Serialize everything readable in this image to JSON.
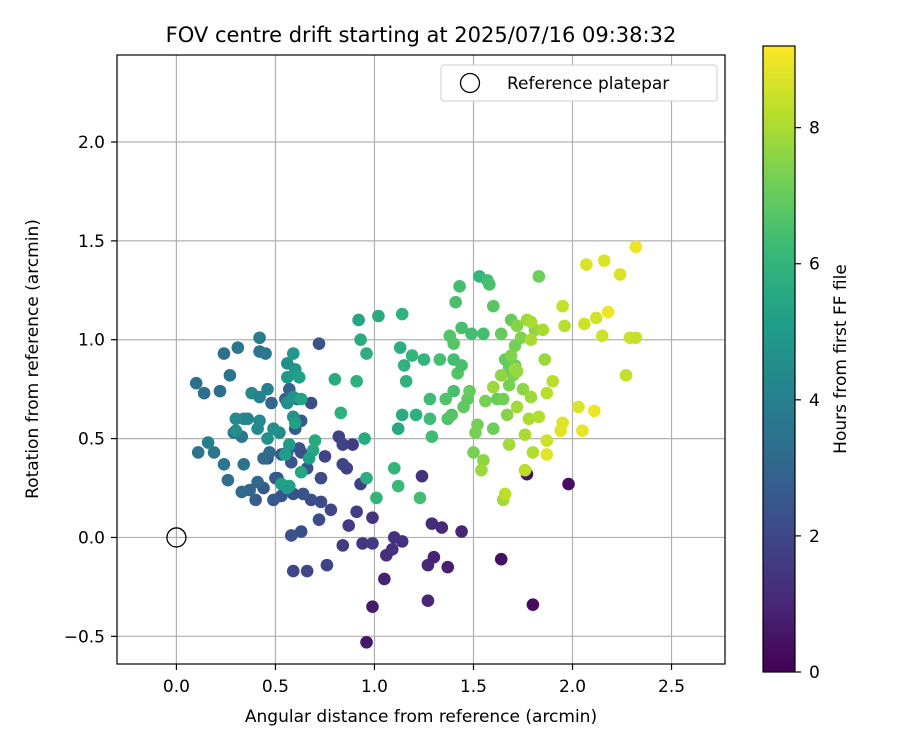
{
  "chart_data": {
    "type": "scatter",
    "title": "FOV centre drift starting at 2025/07/16 09:38:32",
    "xlabel": "Angular distance from reference (arcmin)",
    "ylabel": "Rotation from reference (arcmin)",
    "xlim": [
      -0.3,
      2.77
    ],
    "ylim": [
      -0.64,
      2.44
    ],
    "xticks": [
      0.0,
      0.5,
      1.0,
      1.5,
      2.0,
      2.5
    ],
    "yticks": [
      -0.5,
      0.0,
      0.5,
      1.0,
      1.5,
      2.0
    ],
    "xtick_labels": [
      "0.0",
      "0.5",
      "1.0",
      "1.5",
      "2.0",
      "2.5"
    ],
    "ytick_labels": [
      "−0.5",
      "0.0",
      "0.5",
      "1.0",
      "1.5",
      "2.0"
    ],
    "grid": true,
    "legend": {
      "position": "top-right",
      "entries": [
        "Reference platepar"
      ]
    },
    "reference_point": {
      "name": "Reference platepar",
      "x": 0.0,
      "y": 0.0,
      "marker": "open-circle"
    },
    "colorbar": {
      "label": "Hours from first FF file",
      "colormap": "viridis",
      "range": [
        0,
        9.2
      ],
      "ticks": [
        0,
        2,
        4,
        6,
        8
      ],
      "tick_labels": [
        "0",
        "2",
        "4",
        "6",
        "8"
      ]
    },
    "colormap_stops": [
      "#440154",
      "#482878",
      "#3e4989",
      "#31688e",
      "#26828e",
      "#1f9e89",
      "#35b779",
      "#6ece58",
      "#b5de2b",
      "#fde725"
    ],
    "points": [
      [
        0.96,
        -0.53,
        0.6
      ],
      [
        0.99,
        -0.35,
        0.7
      ],
      [
        1.05,
        -0.21,
        0.9
      ],
      [
        1.27,
        -0.32,
        1.0
      ],
      [
        1.8,
        -0.34,
        0.3
      ],
      [
        1.64,
        -0.11,
        0.4
      ],
      [
        1.98,
        0.27,
        0.4
      ],
      [
        1.77,
        0.32,
        0.5
      ],
      [
        1.37,
        -0.15,
        0.8
      ],
      [
        1.27,
        -0.14,
        1.0
      ],
      [
        1.3,
        -0.1,
        0.9
      ],
      [
        1.06,
        -0.09,
        1.2
      ],
      [
        1.09,
        -0.06,
        1.3
      ],
      [
        1.14,
        -0.02,
        1.3
      ],
      [
        1.1,
        0.0,
        1.3
      ],
      [
        1.29,
        0.07,
        1.1
      ],
      [
        1.34,
        0.05,
        1.1
      ],
      [
        1.44,
        0.03,
        1.0
      ],
      [
        1.24,
        0.31,
        1.3
      ],
      [
        0.99,
        0.1,
        1.4
      ],
      [
        0.94,
        -0.03,
        1.5
      ],
      [
        0.99,
        -0.03,
        1.6
      ],
      [
        0.84,
        -0.04,
        1.6
      ],
      [
        0.87,
        0.06,
        1.6
      ],
      [
        0.91,
        0.13,
        1.7
      ],
      [
        0.93,
        0.27,
        1.8
      ],
      [
        0.76,
        -0.14,
        1.9
      ],
      [
        0.66,
        -0.17,
        2.0
      ],
      [
        0.59,
        -0.17,
        2.0
      ],
      [
        0.72,
        0.09,
        2.1
      ],
      [
        0.73,
        0.18,
        2.1
      ],
      [
        0.78,
        0.14,
        2.0
      ],
      [
        0.63,
        0.03,
        2.2
      ],
      [
        0.58,
        0.01,
        2.3
      ],
      [
        0.68,
        0.19,
        2.2
      ],
      [
        0.73,
        0.3,
        2.1
      ],
      [
        0.64,
        0.22,
        2.4
      ],
      [
        0.59,
        0.22,
        2.3
      ],
      [
        0.53,
        0.21,
        2.4
      ],
      [
        0.51,
        0.3,
        2.5
      ],
      [
        0.46,
        0.4,
        2.6
      ],
      [
        0.5,
        0.3,
        2.6
      ],
      [
        0.44,
        0.25,
        2.6
      ],
      [
        0.4,
        0.19,
        2.7
      ],
      [
        0.49,
        0.19,
        2.6
      ],
      [
        0.75,
        0.41,
        1.9
      ],
      [
        0.82,
        0.51,
        1.8
      ],
      [
        0.84,
        0.47,
        1.9
      ],
      [
        0.86,
        0.35,
        1.8
      ],
      [
        0.84,
        0.37,
        1.9
      ],
      [
        0.89,
        0.47,
        1.7
      ],
      [
        0.72,
        0.98,
        2.4
      ],
      [
        0.68,
        0.68,
        2.2
      ],
      [
        0.62,
        0.45,
        2.4
      ],
      [
        0.63,
        0.43,
        2.3
      ],
      [
        0.66,
        0.35,
        2.3
      ],
      [
        0.58,
        0.38,
        2.5
      ],
      [
        0.56,
        0.43,
        2.6
      ],
      [
        0.53,
        0.42,
        2.7
      ],
      [
        0.6,
        0.55,
        2.6
      ],
      [
        0.63,
        0.59,
        2.6
      ],
      [
        0.61,
        0.7,
        3.0
      ],
      [
        0.57,
        0.75,
        2.9
      ],
      [
        0.55,
        0.7,
        3.1
      ],
      [
        0.48,
        0.68,
        3.0
      ],
      [
        0.47,
        0.43,
        3.2
      ],
      [
        0.44,
        0.4,
        3.2
      ],
      [
        0.41,
        0.28,
        3.1
      ],
      [
        0.37,
        0.24,
        3.0
      ],
      [
        0.33,
        0.23,
        3.2
      ],
      [
        0.26,
        0.29,
        3.3
      ],
      [
        0.29,
        0.53,
        3.5
      ],
      [
        0.33,
        0.51,
        3.6
      ],
      [
        0.34,
        0.37,
        3.5
      ],
      [
        0.24,
        0.37,
        3.6
      ],
      [
        0.19,
        0.43,
        3.6
      ],
      [
        0.11,
        0.43,
        3.5
      ],
      [
        0.16,
        0.48,
        4.0
      ],
      [
        0.14,
        0.73,
        3.4
      ],
      [
        0.1,
        0.78,
        3.4
      ],
      [
        0.22,
        0.74,
        3.4
      ],
      [
        0.27,
        0.82,
        3.5
      ],
      [
        0.24,
        0.93,
        3.4
      ],
      [
        0.31,
        0.96,
        3.6
      ],
      [
        0.42,
        0.94,
        3.5
      ],
      [
        0.45,
        0.93,
        3.7
      ],
      [
        0.42,
        1.01,
        3.8
      ],
      [
        0.38,
        0.73,
        4.3
      ],
      [
        0.42,
        0.71,
        4.0
      ],
      [
        0.46,
        0.75,
        4.1
      ],
      [
        0.34,
        0.6,
        4.0
      ],
      [
        0.3,
        0.6,
        4.4
      ],
      [
        0.3,
        0.54,
        4.5
      ],
      [
        0.36,
        0.6,
        4.2
      ],
      [
        0.42,
        0.59,
        4.4
      ],
      [
        0.41,
        0.55,
        4.4
      ],
      [
        0.46,
        0.5,
        4.6
      ],
      [
        0.52,
        0.53,
        4.4
      ],
      [
        0.49,
        0.55,
        4.6
      ],
      [
        0.59,
        0.61,
        4.6
      ],
      [
        0.56,
        0.68,
        4.5
      ],
      [
        0.59,
        0.71,
        4.7
      ],
      [
        0.56,
        0.81,
        4.9
      ],
      [
        0.6,
        0.85,
        4.9
      ],
      [
        0.56,
        0.88,
        4.6
      ],
      [
        0.59,
        0.93,
        4.9
      ],
      [
        0.62,
        0.81,
        5.2
      ],
      [
        0.63,
        0.7,
        5.3
      ],
      [
        0.6,
        0.58,
        5.2
      ],
      [
        0.57,
        0.47,
        5.0
      ],
      [
        0.55,
        0.42,
        5.1
      ],
      [
        0.57,
        0.26,
        5.3
      ],
      [
        0.53,
        0.27,
        5.2
      ],
      [
        0.56,
        0.25,
        5.1
      ],
      [
        0.63,
        0.33,
        5.4
      ],
      [
        0.69,
        0.44,
        5.5
      ],
      [
        0.7,
        0.49,
        5.6
      ],
      [
        0.67,
        0.4,
        5.2
      ],
      [
        0.8,
        0.8,
        5.6
      ],
      [
        0.83,
        0.63,
        5.8
      ],
      [
        0.91,
        0.79,
        5.8
      ],
      [
        0.95,
        0.5,
        5.6
      ],
      [
        0.96,
        0.3,
        5.7
      ],
      [
        1.01,
        0.2,
        6.0
      ],
      [
        1.1,
        0.35,
        6.0
      ],
      [
        1.12,
        0.26,
        6.2
      ],
      [
        1.23,
        0.2,
        6.4
      ],
      [
        1.12,
        0.55,
        5.5
      ],
      [
        1.14,
        0.62,
        5.7
      ],
      [
        1.21,
        0.62,
        5.8
      ],
      [
        1.16,
        0.79,
        5.9
      ],
      [
        1.13,
        0.96,
        5.7
      ],
      [
        1.15,
        0.87,
        5.9
      ],
      [
        1.19,
        0.92,
        6.0
      ],
      [
        1.25,
        0.9,
        6.0
      ],
      [
        0.92,
        1.1,
        5.4
      ],
      [
        0.93,
        1.0,
        5.6
      ],
      [
        0.96,
        0.93,
        5.7
      ],
      [
        1.02,
        1.12,
        5.6
      ],
      [
        1.14,
        1.13,
        5.9
      ],
      [
        1.29,
        0.51,
        6.3
      ],
      [
        1.28,
        0.6,
        6.3
      ],
      [
        1.28,
        0.7,
        6.3
      ],
      [
        1.33,
        0.9,
        6.4
      ],
      [
        1.4,
        0.9,
        6.4
      ],
      [
        1.4,
        0.74,
        6.5
      ],
      [
        1.37,
        0.6,
        6.6
      ],
      [
        1.36,
        0.7,
        6.6
      ],
      [
        1.39,
        0.62,
        6.7
      ],
      [
        1.45,
        0.66,
        6.9
      ],
      [
        1.47,
        0.7,
        6.9
      ],
      [
        1.48,
        0.74,
        7.0
      ],
      [
        1.42,
        0.83,
        6.7
      ],
      [
        1.44,
        0.87,
        6.5
      ],
      [
        1.4,
        0.98,
        6.7
      ],
      [
        1.38,
        1.02,
        6.7
      ],
      [
        1.44,
        1.06,
        6.5
      ],
      [
        1.49,
        1.03,
        6.4
      ],
      [
        1.55,
        1.03,
        6.4
      ],
      [
        1.41,
        1.19,
        6.5
      ],
      [
        1.43,
        1.27,
        6.4
      ],
      [
        1.53,
        1.32,
        6.1
      ],
      [
        1.57,
        1.3,
        6.3
      ],
      [
        1.58,
        1.28,
        6.5
      ],
      [
        1.6,
        1.17,
        6.8
      ],
      [
        1.51,
        0.53,
        7.3
      ],
      [
        1.52,
        0.57,
        7.2
      ],
      [
        1.5,
        0.43,
        7.3
      ],
      [
        1.55,
        0.39,
        7.6
      ],
      [
        1.54,
        0.34,
        7.8
      ],
      [
        1.56,
        0.69,
        7.3
      ],
      [
        1.6,
        0.55,
        7.1
      ],
      [
        1.62,
        0.7,
        7.0
      ],
      [
        1.65,
        0.7,
        7.2
      ],
      [
        1.68,
        0.77,
        7.3
      ],
      [
        1.67,
        0.62,
        7.5
      ],
      [
        1.7,
        0.82,
        7.3
      ],
      [
        1.68,
        0.86,
        7.0
      ],
      [
        1.71,
        0.87,
        7.1
      ],
      [
        1.66,
        0.9,
        7.0
      ],
      [
        1.69,
        1.1,
        7.0
      ],
      [
        1.71,
        0.97,
        7.2
      ],
      [
        1.74,
        1.01,
        7.4
      ],
      [
        1.72,
        1.07,
        7.5
      ],
      [
        1.81,
        1.05,
        7.6
      ],
      [
        1.77,
        1.1,
        7.8
      ],
      [
        1.79,
        1.09,
        8.0
      ],
      [
        1.79,
        1.0,
        8.0
      ],
      [
        1.71,
        0.85,
        7.9
      ],
      [
        1.75,
        0.75,
        7.6
      ],
      [
        1.79,
        0.71,
        7.8
      ],
      [
        1.72,
        0.66,
        7.9
      ],
      [
        1.78,
        0.6,
        8.0
      ],
      [
        1.83,
        0.61,
        8.1
      ],
      [
        1.87,
        0.73,
        8.2
      ],
      [
        1.9,
        0.79,
        8.2
      ],
      [
        1.76,
        0.52,
        8.0
      ],
      [
        1.8,
        0.43,
        8.1
      ],
      [
        1.68,
        0.47,
        7.9
      ],
      [
        1.65,
        0.19,
        7.9
      ],
      [
        1.66,
        0.22,
        8.3
      ],
      [
        1.76,
        0.34,
        8.3
      ],
      [
        1.87,
        0.49,
        8.5
      ],
      [
        1.87,
        0.42,
        8.8
      ],
      [
        1.94,
        0.54,
        8.8
      ],
      [
        1.95,
        0.58,
        8.8
      ],
      [
        2.03,
        0.66,
        8.7
      ],
      [
        2.05,
        0.54,
        8.9
      ],
      [
        2.11,
        0.64,
        9.0
      ],
      [
        2.06,
        1.08,
        8.5
      ],
      [
        2.12,
        1.11,
        8.6
      ],
      [
        2.15,
        1.02,
        8.5
      ],
      [
        2.18,
        1.14,
        9.0
      ],
      [
        2.07,
        1.38,
        8.7
      ],
      [
        2.16,
        1.4,
        8.7
      ],
      [
        2.24,
        1.33,
        8.7
      ],
      [
        2.27,
        0.82,
        8.4
      ],
      [
        2.29,
        1.01,
        8.5
      ],
      [
        2.32,
        1.01,
        8.4
      ],
      [
        2.32,
        1.47,
        9.0
      ],
      [
        1.95,
        1.17,
        8.4
      ],
      [
        1.96,
        1.07,
        8.2
      ],
      [
        1.85,
        1.05,
        8.0
      ],
      [
        1.83,
        1.32,
        7.1
      ],
      [
        1.86,
        0.9,
        7.8
      ],
      [
        1.69,
        0.92,
        7.4
      ],
      [
        1.72,
        0.84,
        7.7
      ],
      [
        1.64,
        0.82,
        7.6
      ],
      [
        1.6,
        0.76,
        7.8
      ],
      [
        1.64,
        1.03,
        7.0
      ]
    ]
  }
}
